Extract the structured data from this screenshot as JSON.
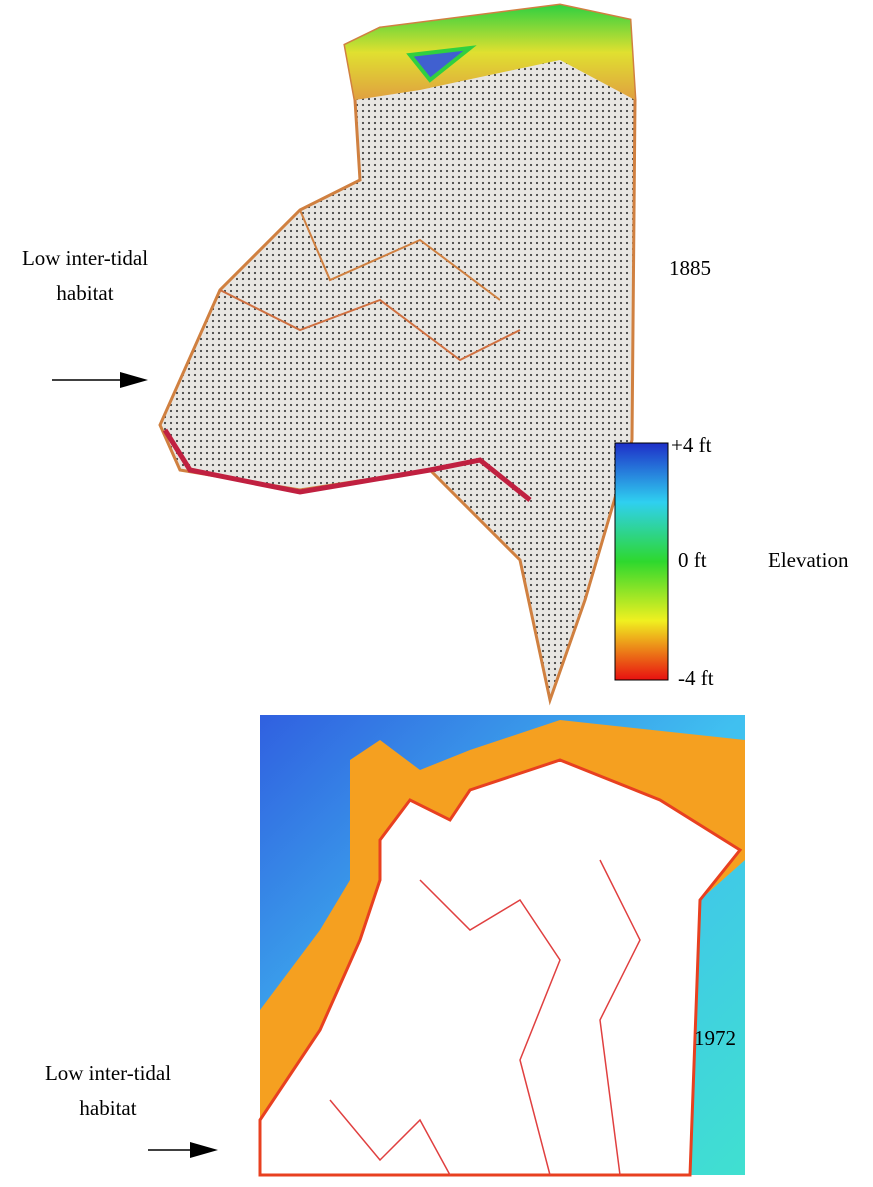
{
  "panels": [
    {
      "year": "1885",
      "annotation": [
        "Low inter-tidal",
        "habitat"
      ]
    },
    {
      "year": "1972",
      "annotation": [
        "Low inter-tidal",
        "habitat"
      ]
    }
  ],
  "legend": {
    "title": "Elevation",
    "labels": [
      "+4 ft",
      "0 ft",
      "-4 ft"
    ]
  }
}
